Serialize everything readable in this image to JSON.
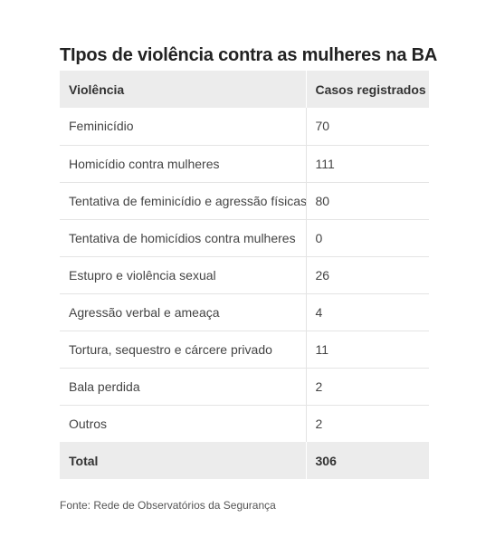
{
  "title": "TIpos de violência contra as mulheres na BA",
  "table": {
    "headers": [
      "Violência",
      "Casos registrados"
    ],
    "rows": [
      [
        "Feminicídio",
        "70"
      ],
      [
        "Homicídio contra mulheres",
        "111"
      ],
      [
        "Tentativa de feminicídio e agressão físicas",
        "80"
      ],
      [
        "Tentativa de homicídios contra mulheres",
        "0"
      ],
      [
        "Estupro e violência sexual",
        "26"
      ],
      [
        "Agressão verbal e ameaça",
        "4"
      ],
      [
        "Tortura, sequestro e cárcere privado",
        "11"
      ],
      [
        "Bala perdida",
        "2"
      ],
      [
        "Outros",
        "2"
      ]
    ],
    "total": [
      "Total",
      "306"
    ]
  },
  "source": "Fonte: Rede de Observatórios da Segurança",
  "colors": {
    "header_bg": "#ececec",
    "row_border": "#e4e4e4",
    "text": "#333333"
  }
}
